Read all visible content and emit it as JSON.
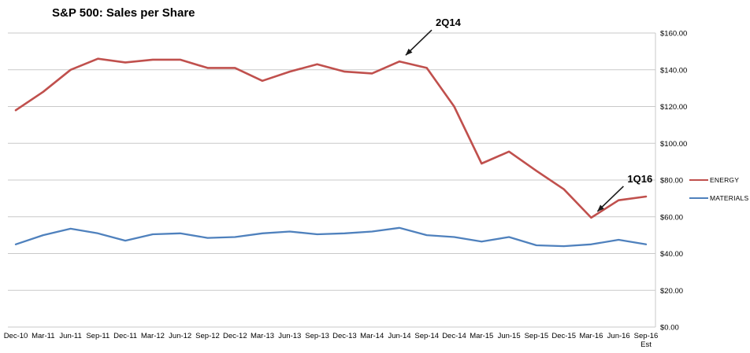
{
  "chart_data": {
    "type": "line",
    "title": "S&P 500: Sales per Share",
    "x": [
      "Dec-10",
      "Mar-11",
      "Jun-11",
      "Sep-11",
      "Dec-11",
      "Mar-12",
      "Jun-12",
      "Sep-12",
      "Dec-12",
      "Mar-13",
      "Jun-13",
      "Sep-13",
      "Dec-13",
      "Mar-14",
      "Jun-14",
      "Sep-14",
      "Dec-14",
      "Mar-15",
      "Jun-15",
      "Sep-15",
      "Dec-15",
      "Mar-16",
      "Jun-16",
      "Sep-16 Est"
    ],
    "series": [
      {
        "name": "ENERGY",
        "color": "#c0504d",
        "values": [
          118,
          128,
          140,
          146,
          144,
          145.5,
          145.5,
          141,
          141,
          134,
          139,
          143,
          139,
          138,
          144.5,
          141,
          120,
          89,
          95.5,
          85,
          75,
          59.5,
          69,
          71
        ]
      },
      {
        "name": "MATERIALS",
        "color": "#4f81bd",
        "values": [
          45,
          50,
          53.5,
          51,
          47,
          50.5,
          51,
          48.5,
          49,
          51,
          52,
          50.5,
          51,
          52,
          54,
          50,
          49,
          46.5,
          49,
          44.5,
          44,
          45,
          47.5,
          45
        ]
      }
    ],
    "ylim": [
      0,
      160
    ],
    "ytick_step": 20,
    "ytick_labels": [
      "$0.00",
      "$20.00",
      "$40.00",
      "$60.00",
      "$80.00",
      "$100.00",
      "$120.00",
      "$140.00",
      "$160.00"
    ],
    "ytick_side": "right",
    "grid": true,
    "legend_position": "right",
    "annotations": [
      {
        "label": "2Q14",
        "point": "Jun-14",
        "series": "ENERGY"
      },
      {
        "label": "1Q16",
        "point": "Mar-16",
        "series": "ENERGY"
      }
    ]
  }
}
